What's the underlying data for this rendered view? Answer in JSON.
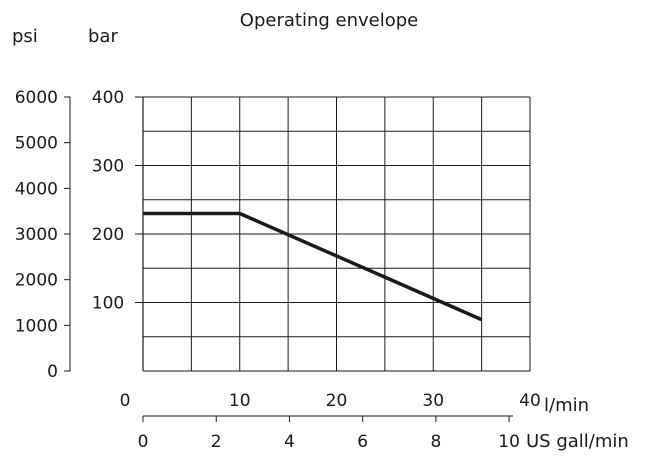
{
  "chart_data": {
    "type": "line",
    "title": "Operating envelope",
    "axes": {
      "psi": {
        "label": "psi",
        "ticks": [
          "0",
          "1000",
          "2000",
          "3000",
          "4000",
          "5000",
          "6000"
        ],
        "range": [
          0,
          6000
        ]
      },
      "bar": {
        "label": "bar",
        "ticks": [
          "100",
          "200",
          "300",
          "400"
        ],
        "range": [
          0,
          400
        ]
      },
      "lmin": {
        "label": "l/min",
        "ticks": [
          "0",
          "10",
          "20",
          "30",
          "40"
        ],
        "range": [
          0,
          40
        ]
      },
      "usgal": {
        "label": "US gall/min",
        "ticks": [
          "0",
          "2",
          "4",
          "6",
          "8",
          "10"
        ],
        "range": [
          0,
          10.57
        ]
      }
    },
    "grid": true,
    "series": [
      {
        "x_unit": "l/min",
        "y_unit": "bar",
        "x": [
          0,
          10,
          35
        ],
        "y": [
          230,
          230,
          75
        ]
      }
    ]
  }
}
